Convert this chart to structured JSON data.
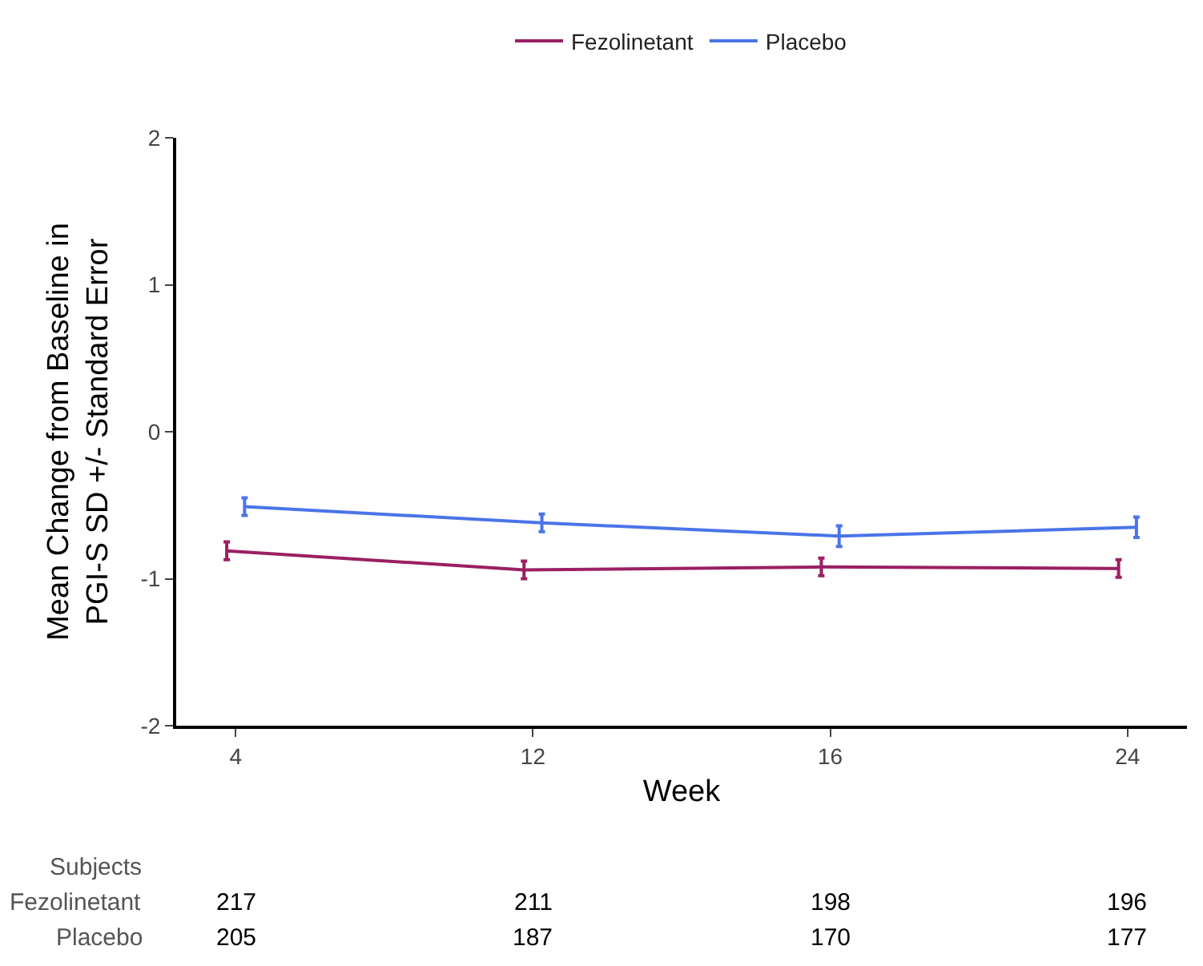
{
  "chart_data": {
    "type": "line",
    "xlabel": "Week",
    "ylabel": "Mean Change from Baseline in\nPGI-S SD +/- Standard Error",
    "categories": [
      "4",
      "12",
      "16",
      "24"
    ],
    "series": [
      {
        "name": "Fezolinetant",
        "color": "#9b1f63",
        "values": [
          -0.81,
          -0.94,
          -0.92,
          -0.93
        ],
        "errors": [
          0.06,
          0.06,
          0.06,
          0.06
        ]
      },
      {
        "name": "Placebo",
        "color": "#4a74e8",
        "values": [
          -0.51,
          -0.62,
          -0.71,
          -0.65
        ],
        "errors": [
          0.06,
          0.06,
          0.07,
          0.07
        ]
      }
    ],
    "ylim": [
      -2,
      2
    ],
    "yticks": [
      -2,
      -1,
      0,
      1,
      2
    ],
    "legend": "top",
    "marker": "none",
    "line_style": "solid",
    "annotations": [
      "Subjects",
      "Fezolinetant",
      "Placebo",
      "217",
      "211",
      "198",
      "196",
      "205",
      "187",
      "170",
      "177"
    ]
  }
}
